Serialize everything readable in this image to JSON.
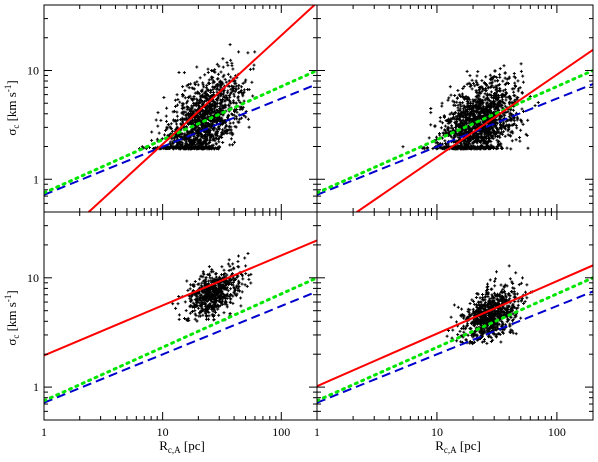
{
  "chart_data": {
    "type": "scatter",
    "xscale": "log",
    "yscale": "log",
    "xlim": [
      1,
      200
    ],
    "ylim": [
      0.5,
      40
    ],
    "xlabel": {
      "main": "R",
      "sub": "c,A",
      "unit": "[pc]"
    },
    "ylabel": {
      "main": "σ",
      "sub": "c",
      "unit": "[km s",
      "sup": "-1",
      "close": "]"
    },
    "x_ticks": [
      {
        "value": 1,
        "label": "1"
      },
      {
        "value": 10,
        "label": "10"
      },
      {
        "value": 100,
        "label": "100"
      }
    ],
    "y_ticks": [
      {
        "value": 1,
        "label": "1"
      },
      {
        "value": 10,
        "label": "10"
      }
    ],
    "colors": {
      "fit": "#ff0000",
      "dotted": "#00e600",
      "dashed": "#0000cc",
      "points": "#000000"
    },
    "panels": [
      {
        "id": "top-left",
        "points_summary": {
          "count": 1400,
          "x_median": 22,
          "x_log_sigma": 0.16,
          "x_range": [
            4.5,
            70
          ],
          "y_floor": 1.9,
          "y_slope": 0.75,
          "y_log_sigma": 0.2,
          "y_range": [
            1.9,
            36
          ]
        },
        "fit_solid": {
          "x": [
            1,
            200
          ],
          "y": [
            0.21,
            42
          ]
        },
        "line_dotted": {
          "x": [
            1,
            200
          ],
          "y": [
            0.75,
            10
          ]
        },
        "line_dashed": {
          "x": [
            1,
            200
          ],
          "y": [
            0.72,
            7.5
          ]
        }
      },
      {
        "id": "top-right",
        "points_summary": {
          "count": 1500,
          "x_median": 22,
          "x_log_sigma": 0.16,
          "x_range": [
            4.5,
            70
          ],
          "y_floor": 1.9,
          "y_slope": 0.5,
          "y_log_sigma": 0.18,
          "y_range": [
            1.9,
            25
          ]
        },
        "fit_solid": {
          "x": [
            1,
            200
          ],
          "y": [
            0.28,
            15.5
          ]
        },
        "line_dotted": {
          "x": [
            1,
            200
          ],
          "y": [
            0.75,
            10
          ]
        },
        "line_dashed": {
          "x": [
            1,
            200
          ],
          "y": [
            0.72,
            7.5
          ]
        }
      },
      {
        "id": "bottom-left",
        "points_summary": {
          "count": 600,
          "x_median": 27,
          "x_log_sigma": 0.12,
          "x_range": [
            12,
            65
          ],
          "y_floor": 4,
          "y_slope": 0.45,
          "y_log_sigma": 0.1,
          "y_range": [
            4,
            36
          ]
        },
        "fit_solid": {
          "x": [
            1,
            200
          ],
          "y": [
            1.95,
            22
          ]
        },
        "line_dotted": {
          "x": [
            1,
            200
          ],
          "y": [
            0.75,
            10
          ]
        },
        "line_dashed": {
          "x": [
            1,
            200
          ],
          "y": [
            0.72,
            7.5
          ]
        }
      },
      {
        "id": "bottom-right",
        "points_summary": {
          "count": 800,
          "x_median": 28,
          "x_log_sigma": 0.12,
          "x_range": [
            12,
            65
          ],
          "y_floor": 2.5,
          "y_slope": 0.5,
          "y_log_sigma": 0.11,
          "y_range": [
            2.5,
            25
          ]
        },
        "fit_solid": {
          "x": [
            1,
            200
          ],
          "y": [
            1.02,
            13
          ]
        },
        "line_dotted": {
          "x": [
            1,
            200
          ],
          "y": [
            0.75,
            10
          ]
        },
        "line_dashed": {
          "x": [
            1,
            200
          ],
          "y": [
            0.72,
            7.5
          ]
        }
      }
    ]
  }
}
